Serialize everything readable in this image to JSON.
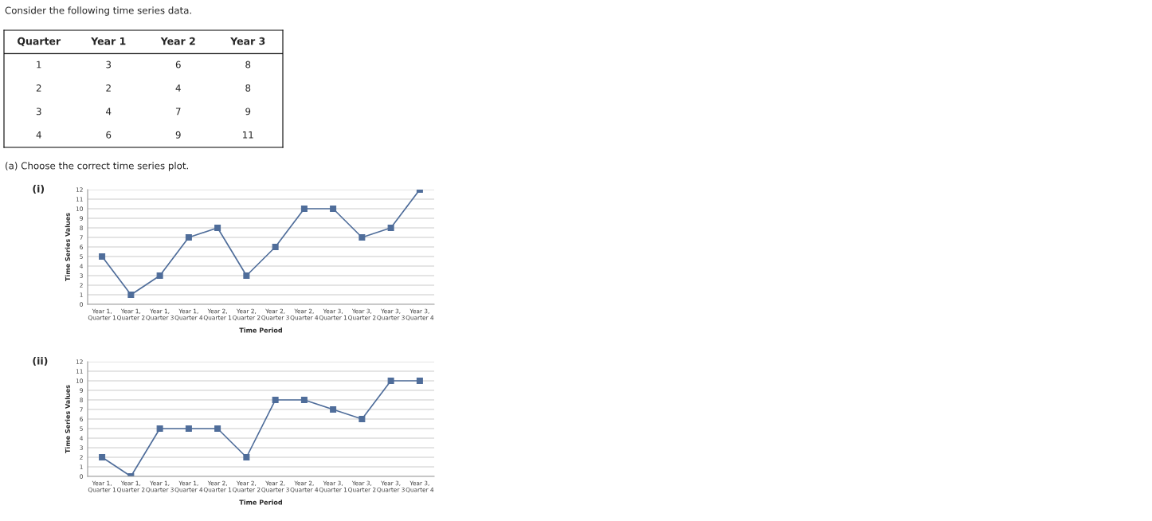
{
  "chart_data": [
    {
      "type": "heatmap",
      "title": "Consider the following time series data.",
      "ylabel": "Quarter",
      "categories": [
        "Year 1",
        "Year 2",
        "Year 3"
      ],
      "y_categories": [
        "1",
        "2",
        "3",
        "4"
      ],
      "data_labels": true,
      "cells": [
        [
          3,
          6,
          8
        ],
        [
          2,
          4,
          8
        ],
        [
          4,
          7,
          9
        ],
        [
          6,
          9,
          11
        ]
      ],
      "annotations": [
        "(a) Choose the correct time series plot."
      ]
    },
    {
      "type": "line",
      "title": "(i)",
      "xlabel": "Time Period",
      "ylabel": "Time Series Values",
      "categories": [
        "Year 1,\nQuarter 1",
        "Year 1,\nQuarter 2",
        "Year 1,\nQuarter 3",
        "Year 1,\nQuarter 4",
        "Year 2,\nQuarter 1",
        "Year 2,\nQuarter 2",
        "Year 2,\nQuarter 3",
        "Year 2,\nQuarter 4",
        "Year 3,\nQuarter 1",
        "Year 3,\nQuarter 2",
        "Year 3,\nQuarter 3",
        "Year 3,\nQuarter 4"
      ],
      "series": [
        {
          "color": "#4f6d9a",
          "values": [
            5,
            1,
            3,
            7,
            8,
            3,
            6,
            10,
            10,
            7,
            8,
            12
          ]
        }
      ],
      "ylim": [
        0,
        12
      ],
      "yticks": [
        0,
        1,
        2,
        3,
        4,
        5,
        6,
        7,
        8,
        9,
        10,
        11,
        12
      ],
      "grid": "y",
      "marker": "square",
      "line_style": "solid"
    },
    {
      "type": "line",
      "title": "(ii)",
      "xlabel": "Time Period",
      "ylabel": "Time Series Values",
      "categories": [
        "Year 1,\nQuarter 1",
        "Year 1,\nQuarter 2",
        "Year 1,\nQuarter 3",
        "Year 1,\nQuarter 4",
        "Year 2,\nQuarter 1",
        "Year 2,\nQuarter 2",
        "Year 2,\nQuarter 3",
        "Year 2,\nQuarter 4",
        "Year 3,\nQuarter 1",
        "Year 3,\nQuarter 2",
        "Year 3,\nQuarter 3",
        "Year 3,\nQuarter 4"
      ],
      "series": [
        {
          "color": "#4f6d9a",
          "values": [
            2,
            0,
            5,
            5,
            5,
            2,
            8,
            8,
            7,
            6,
            10,
            10
          ]
        }
      ],
      "ylim": [
        0,
        12
      ],
      "yticks": [
        0,
        1,
        2,
        3,
        4,
        5,
        6,
        7,
        8,
        9,
        10,
        11,
        12
      ],
      "grid": "y",
      "marker": "square",
      "line_style": "solid"
    }
  ]
}
